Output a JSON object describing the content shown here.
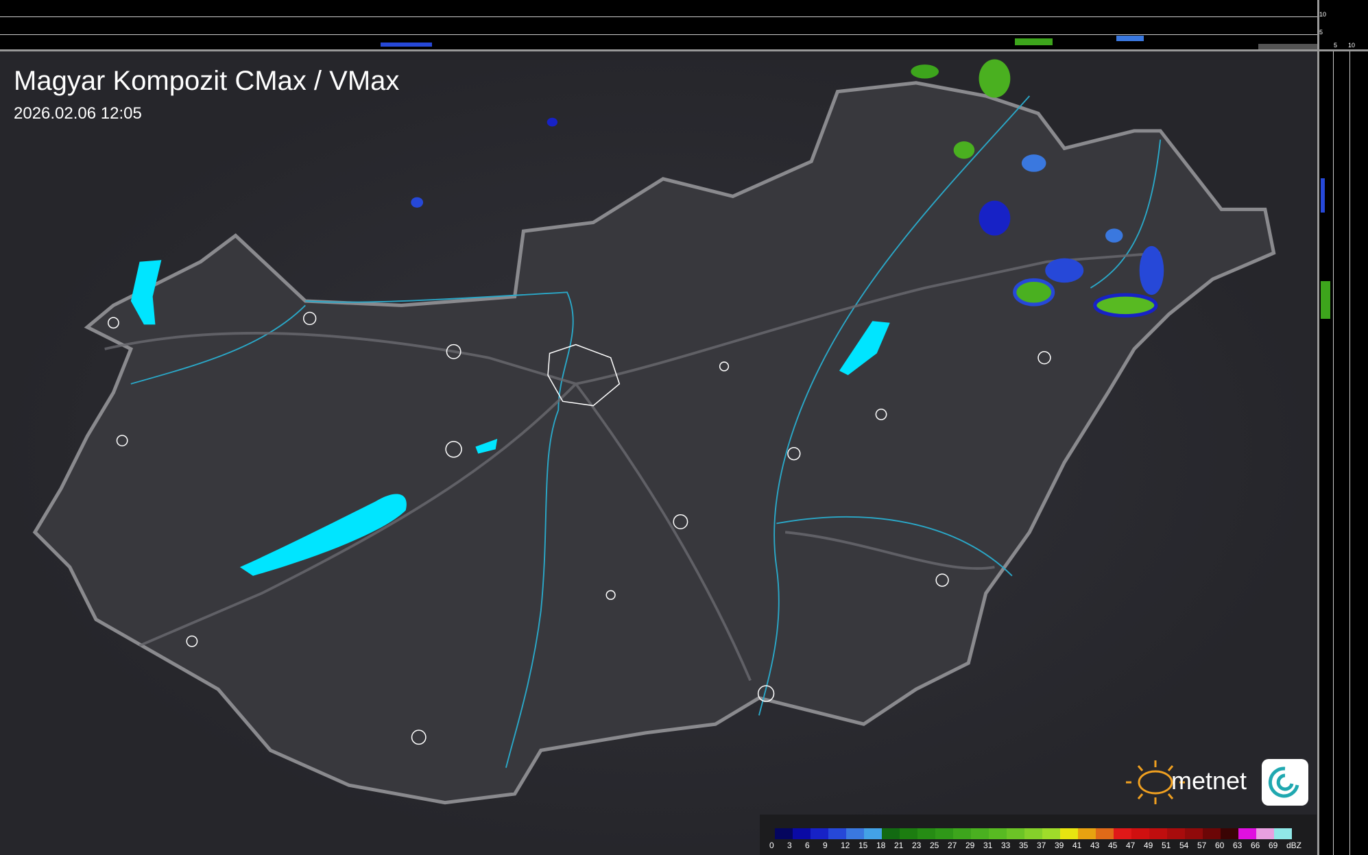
{
  "title": "Magyar Kompozit CMax / VMax",
  "timestamp": "2026.02.06 12:05",
  "profile_axis": {
    "top_ticks": [
      "10",
      "5"
    ],
    "side_ticks": [
      "5",
      "10"
    ]
  },
  "logo": {
    "text": "metnet"
  },
  "legend": {
    "unit": "dBZ",
    "labels": [
      "0",
      "3",
      "6",
      "9",
      "12",
      "15",
      "18",
      "21",
      "23",
      "25",
      "27",
      "29",
      "31",
      "33",
      "35",
      "37",
      "39",
      "41",
      "43",
      "45",
      "47",
      "49",
      "51",
      "54",
      "57",
      "60",
      "63",
      "66",
      "69"
    ],
    "colors": [
      "#05065e",
      "#0a0aa4",
      "#1722c6",
      "#2648d8",
      "#3a78df",
      "#43a2e6",
      "#126a12",
      "#1c7d10",
      "#268c14",
      "#2f9818",
      "#3da51c",
      "#4ab020",
      "#58ba22",
      "#6cc426",
      "#85d02a",
      "#9fdc2a",
      "#e8e410",
      "#e8a210",
      "#e06a18",
      "#e01818",
      "#d01010",
      "#c00e0e",
      "#a80c0c",
      "#900a0a",
      "#6c0606",
      "#3a0404",
      "#e010e0",
      "#e8a0e0",
      "#90e8e8"
    ]
  },
  "colors": {
    "background": "#2b2b30",
    "border": "#8a8a8e",
    "water": "#00e5ff",
    "river": "#2aa8c8",
    "town_outline": "#ffffff"
  }
}
